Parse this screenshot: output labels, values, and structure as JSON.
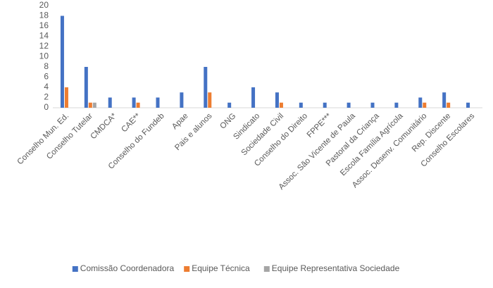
{
  "chart_data": {
    "type": "bar",
    "categories": [
      "Conselho Mun. Ed.",
      "Conselho Tutelar",
      "CMDCA*",
      "CAE**",
      "Conselho do Fundeb",
      "Apae",
      "Pais e alunos",
      "ONG",
      "Sindicato",
      "Sociedade Civil",
      "Conselho do Direito",
      "FPPE***",
      "Assoc. São Vicente de Paula",
      "Pastoral da Criança",
      "Escola Família Agrícola",
      "Assoc. Desenv. Comunitário",
      "Rep. Discente",
      "Conselho Escolares"
    ],
    "series": [
      {
        "name": "Comissão Coordenadora",
        "color": "#4472c4",
        "values": [
          18,
          8,
          2,
          2,
          2,
          3,
          8,
          1,
          4,
          3,
          1,
          1,
          1,
          1,
          1,
          2,
          3,
          1
        ]
      },
      {
        "name": "Equipe Técnica",
        "color": "#ed7d31",
        "values": [
          4,
          1,
          0,
          1,
          0,
          0,
          3,
          0,
          0,
          1,
          0,
          0,
          0,
          0,
          0,
          1,
          1,
          0
        ]
      },
      {
        "name": "Equipe Representativa Sociedade",
        "color": "#a5a5a5",
        "values": [
          0,
          1,
          0,
          0,
          0,
          0,
          0,
          0,
          0,
          0,
          0,
          0,
          0,
          0,
          0,
          0,
          0,
          0
        ]
      }
    ],
    "ylim": [
      0,
      20
    ],
    "yticks": [
      0,
      2,
      4,
      6,
      8,
      10,
      12,
      14,
      16,
      18,
      20
    ],
    "grid": false,
    "legend": "bottom"
  }
}
